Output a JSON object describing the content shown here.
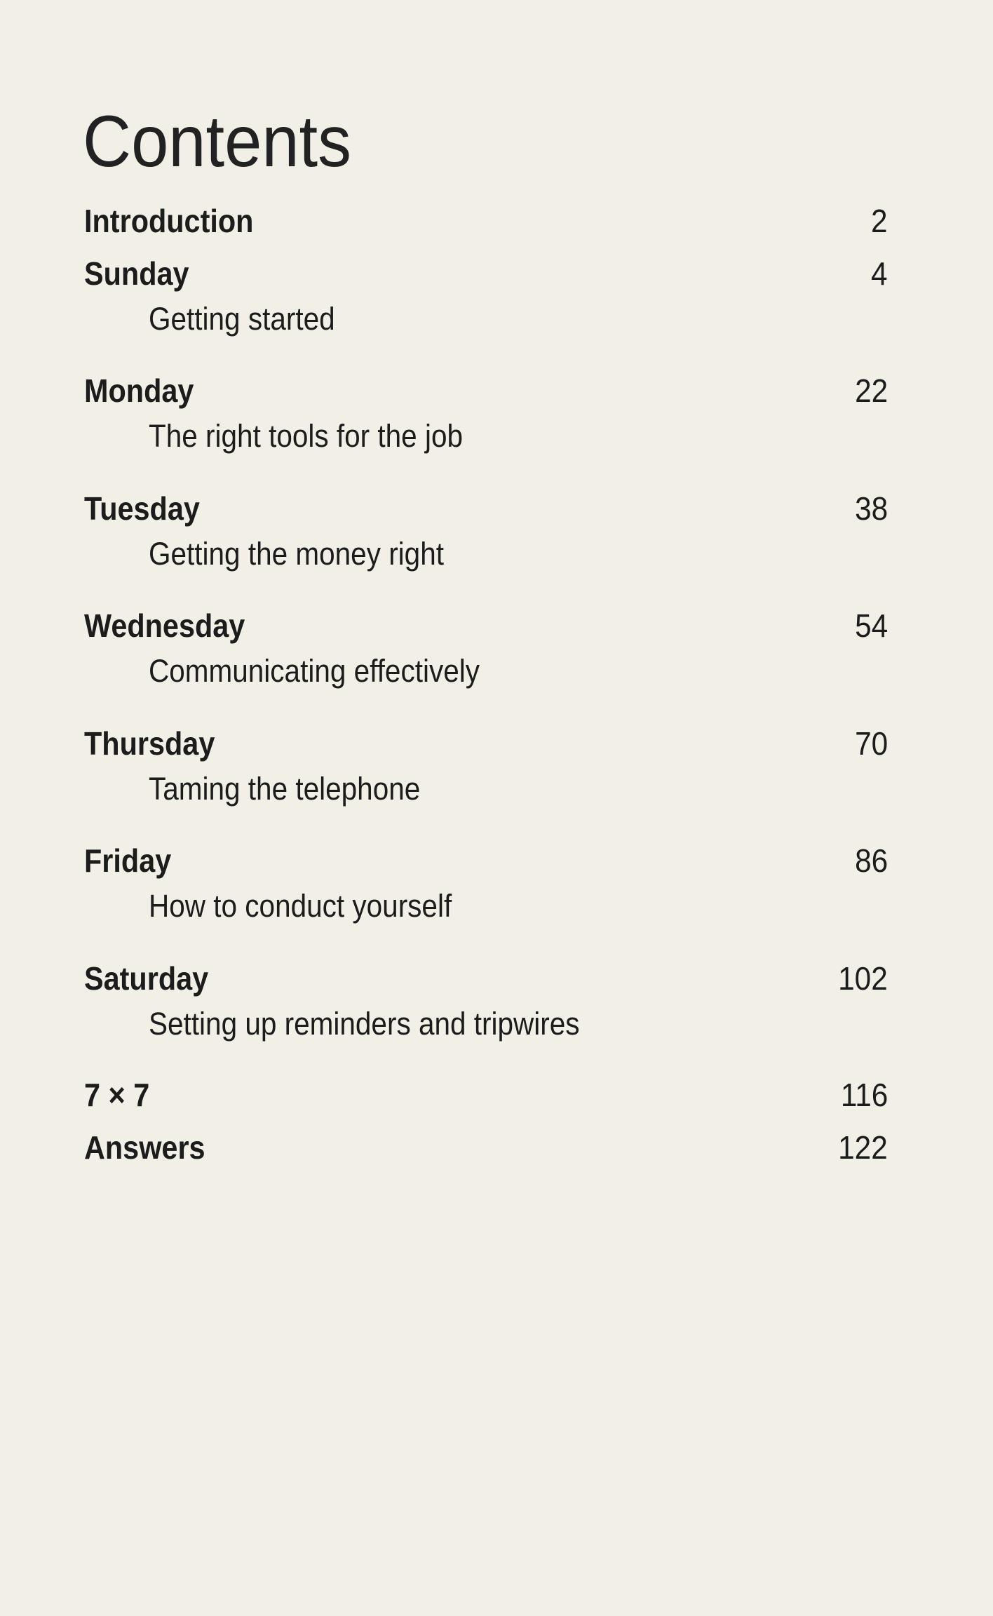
{
  "title": "Contents",
  "entries": [
    {
      "chapter": "Introduction",
      "page": "2"
    },
    {
      "chapter": "Sunday",
      "page": "4",
      "subtitle": "Getting started"
    },
    {
      "chapter": "Monday",
      "page": "22",
      "subtitle": "The right tools for the job"
    },
    {
      "chapter": "Tuesday",
      "page": "38",
      "subtitle": "Getting the money right"
    },
    {
      "chapter": "Wednesday",
      "page": "54",
      "subtitle": "Communicating effectively"
    },
    {
      "chapter": "Thursday",
      "page": "70",
      "subtitle": "Taming the telephone"
    },
    {
      "chapter": "Friday",
      "page": "86",
      "subtitle": "How to conduct yourself"
    },
    {
      "chapter": "Saturday",
      "page": "102",
      "subtitle": "Setting up reminders and tripwires"
    },
    {
      "chapter": "7 × 7",
      "page": "116"
    },
    {
      "chapter": "Answers",
      "page": "122"
    }
  ]
}
